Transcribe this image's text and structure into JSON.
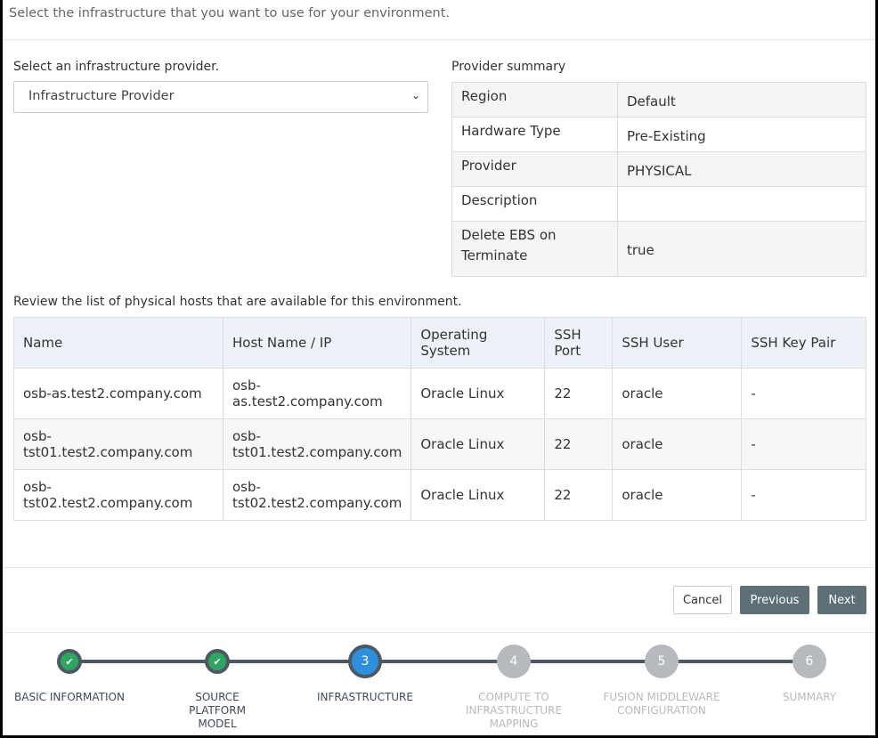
{
  "header": {
    "instruction": "Select the infrastructure that you want to use for your environment."
  },
  "provider": {
    "label": "Select an infrastructure provider.",
    "selected": "Infrastructure Provider"
  },
  "summary": {
    "title": "Provider summary",
    "rows": [
      {
        "label": "Region",
        "value": "Default"
      },
      {
        "label": "Hardware Type",
        "value": "Pre-Existing"
      },
      {
        "label": "Provider",
        "value": "PHYSICAL"
      },
      {
        "label": "Description",
        "value": ""
      },
      {
        "label": "Delete EBS on Terminate",
        "value": "true"
      }
    ]
  },
  "hosts": {
    "caption": "Review the list of physical hosts that are available for this environment.",
    "columns": [
      "Name",
      "Host Name / IP",
      "Operating System",
      "SSH Port",
      "SSH User",
      "SSH Key Pair"
    ],
    "rows": [
      [
        "osb-as.test2.company.com",
        "osb-as.test2.company.com",
        "Oracle Linux",
        "22",
        "oracle",
        "-"
      ],
      [
        "osb-tst01.test2.company.com",
        "osb-tst01.test2.company.com",
        "Oracle Linux",
        "22",
        "oracle",
        "-"
      ],
      [
        "osb-tst02.test2.company.com",
        "osb-tst02.test2.company.com",
        "Oracle Linux",
        "22",
        "oracle",
        "-"
      ]
    ]
  },
  "buttons": {
    "cancel": "Cancel",
    "previous": "Previous",
    "next": "Next"
  },
  "stepper": {
    "steps": [
      {
        "number": "1",
        "label": "BASIC INFORMATION",
        "state": "done",
        "icon": "check-icon"
      },
      {
        "number": "2",
        "label": "SOURCE PLATFORM MODEL",
        "state": "done",
        "icon": "check-icon"
      },
      {
        "number": "3",
        "label": "INFRASTRUCTURE",
        "state": "active"
      },
      {
        "number": "4",
        "label": "COMPUTE TO INFRASTRUCTURE MAPPING",
        "state": "todo"
      },
      {
        "number": "5",
        "label": "FUSION MIDDLEWARE CONFIGURATION",
        "state": "todo"
      },
      {
        "number": "6",
        "label": "SUMMARY",
        "state": "todo"
      }
    ]
  },
  "colors": {
    "done": "#2ea660",
    "active": "#2d8fdd",
    "todo": "#b6b9bd",
    "button": "#5e6f78"
  }
}
